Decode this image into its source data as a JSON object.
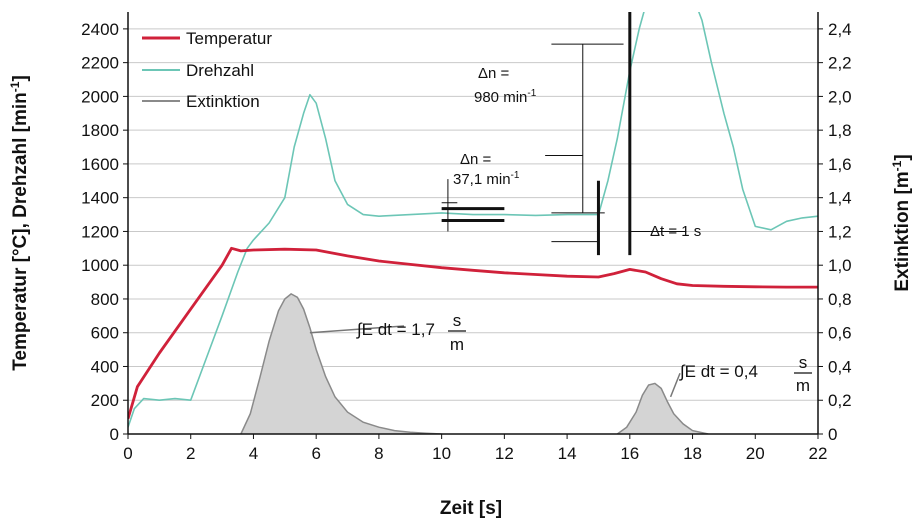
{
  "chart_data": {
    "type": "line",
    "xlabel": "Zeit [s]",
    "ylabel_left": "Temperatur [°C], Drehzahl [min",
    "ylabel_left_sup": "-1",
    "ylabel_left_end": "]",
    "ylabel_right": "Extinktion [m",
    "ylabel_right_sup": "-1",
    "ylabel_right_end": "]",
    "xlim": [
      0,
      22
    ],
    "ylim_left": [
      0,
      2500
    ],
    "ylim_right": [
      0,
      2.5
    ],
    "x_ticks": [
      0,
      2,
      4,
      6,
      8,
      10,
      12,
      14,
      16,
      18,
      20,
      22
    ],
    "y_ticks_left": [
      0,
      200,
      400,
      600,
      800,
      1000,
      1200,
      1400,
      1600,
      1800,
      2000,
      2200,
      2400
    ],
    "y_ticks_right": [
      "0",
      "0,2",
      "0,4",
      "0,6",
      "0,8",
      "1,0",
      "1,2",
      "1,4",
      "1,6",
      "1,8",
      "2,0",
      "2,2",
      "2,4"
    ],
    "grid": "horizontal",
    "legend_position": "top-left",
    "series": [
      {
        "name": "Temperatur",
        "axis": "left",
        "color": "#d0213a",
        "x": [
          0,
          0.3,
          1,
          2,
          3,
          3.3,
          3.6,
          4,
          5,
          6,
          7,
          8,
          9,
          10,
          11,
          12,
          13,
          14,
          15,
          15.5,
          16,
          16.5,
          17,
          17.5,
          18,
          19,
          20,
          21,
          22
        ],
        "y": [
          90,
          280,
          480,
          740,
          1000,
          1100,
          1085,
          1090,
          1095,
          1090,
          1055,
          1025,
          1005,
          985,
          970,
          955,
          945,
          935,
          930,
          950,
          975,
          960,
          920,
          890,
          880,
          875,
          872,
          870,
          870
        ]
      },
      {
        "name": "Drehzahl",
        "axis": "left",
        "color": "#6cc6b6",
        "x": [
          0,
          0.2,
          0.5,
          1,
          1.5,
          2,
          2.5,
          3,
          3.5,
          3.8,
          4,
          4.5,
          5,
          5.3,
          5.6,
          5.8,
          6,
          6.3,
          6.6,
          7,
          7.5,
          8,
          9,
          10,
          11,
          12,
          13,
          14,
          15,
          15.3,
          15.6,
          16,
          16.3,
          16.6,
          17,
          17.5,
          18,
          18.3,
          18.6,
          19,
          19.3,
          19.6,
          20,
          20.5,
          21,
          21.5,
          22
        ],
        "y": [
          40,
          150,
          210,
          200,
          210,
          200,
          450,
          700,
          960,
          1100,
          1150,
          1250,
          1400,
          1700,
          1900,
          2010,
          1960,
          1750,
          1500,
          1360,
          1300,
          1290,
          1300,
          1310,
          1300,
          1300,
          1295,
          1300,
          1300,
          1500,
          1750,
          2150,
          2400,
          2600,
          2600,
          2600,
          2600,
          2450,
          2200,
          1900,
          1700,
          1450,
          1230,
          1210,
          1260,
          1280,
          1290
        ]
      },
      {
        "name": "Extinktion",
        "axis": "right",
        "color": "#8a8a8a",
        "fill": "#d4d4d4",
        "x": [
          3.6,
          3.9,
          4.2,
          4.5,
          4.8,
          5.0,
          5.2,
          5.4,
          5.6,
          5.8,
          6.0,
          6.3,
          6.6,
          7.0,
          7.5,
          8.0,
          8.5,
          9.0,
          9.5,
          10.0,
          15.6,
          15.9,
          16.2,
          16.4,
          16.6,
          16.8,
          17.0,
          17.2,
          17.4,
          17.7,
          18.0,
          18.5
        ],
        "y": [
          0,
          0.12,
          0.33,
          0.55,
          0.73,
          0.8,
          0.83,
          0.81,
          0.74,
          0.63,
          0.5,
          0.34,
          0.22,
          0.13,
          0.07,
          0.04,
          0.02,
          0.01,
          0.005,
          0,
          0,
          0.04,
          0.13,
          0.23,
          0.29,
          0.3,
          0.27,
          0.19,
          0.12,
          0.06,
          0.02,
          0
        ]
      }
    ],
    "annotations": {
      "dn1_line1": "Δn =",
      "dn1_line2": "37,1 min",
      "dn1_sup": "-1",
      "dn2_line1": "Δn =",
      "dn2_line2": "980 min",
      "dn2_sup": "-1",
      "dt": "Δt = 1 s",
      "int1_prefix": "∫E dt = 1,7",
      "int1_num": "s",
      "int1_den": "m",
      "int2_prefix": "∫E dt = 0,4",
      "int2_num": "s",
      "int2_den": "m"
    }
  }
}
